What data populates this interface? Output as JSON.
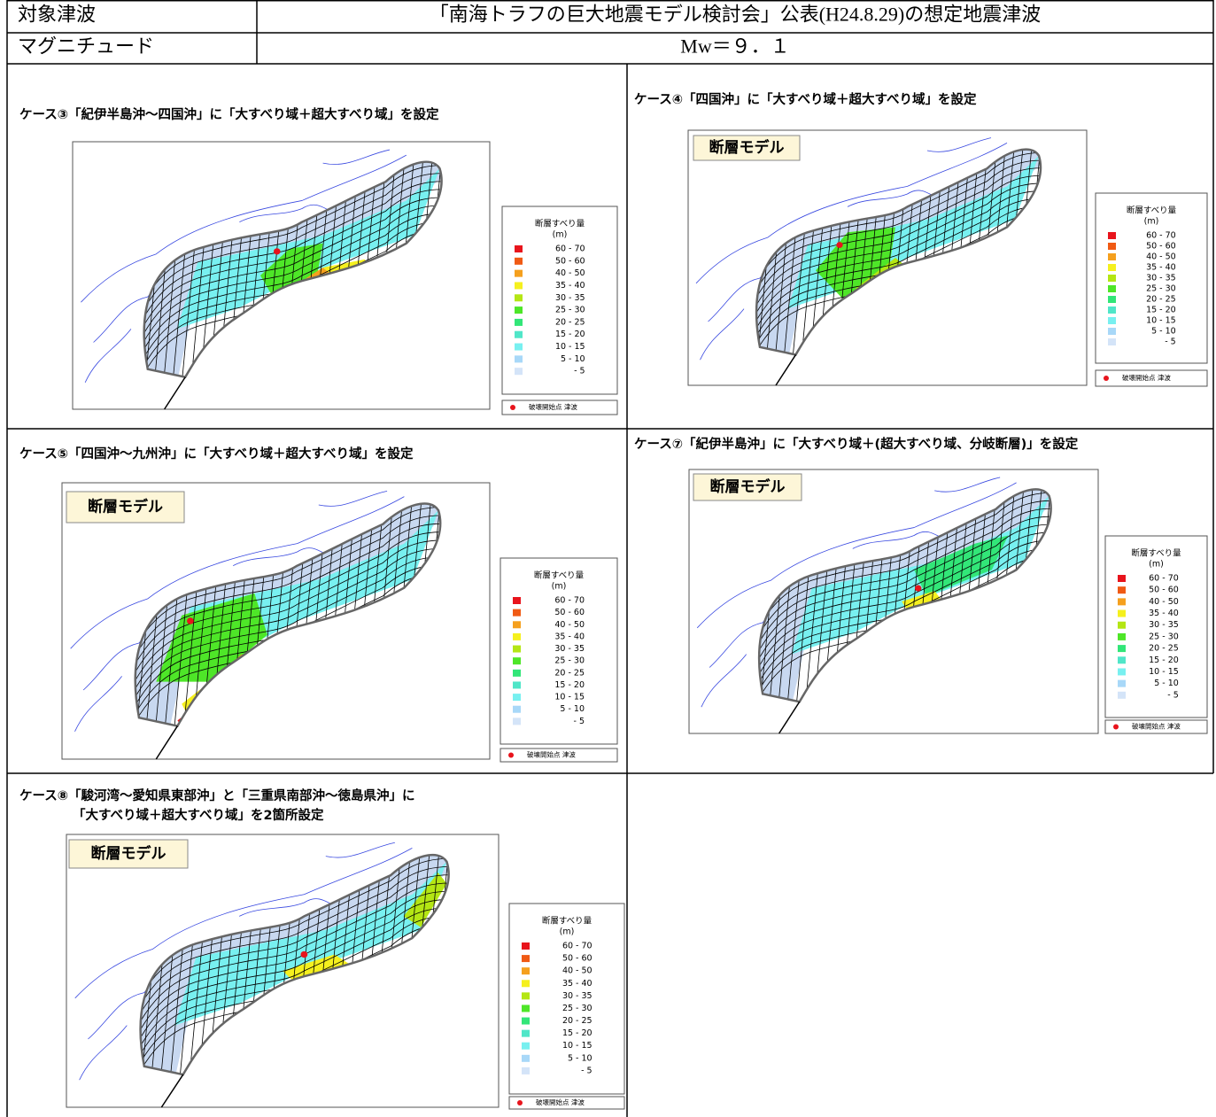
{
  "header": {
    "rows": [
      [
        "対象津波",
        "「南海トラフの巨大地震モデル検討会」公表(H24.8.29)の想定地震津波"
      ],
      [
        "マグニチュード",
        "Mw＝９．１"
      ]
    ]
  },
  "legend": {
    "title": "断層すべり量",
    "unit": "(m)",
    "items": [
      "60 - 70",
      "50 - 60",
      "40 - 50",
      "35 - 40",
      "30 - 35",
      "25 - 30",
      "20 - 25",
      "15 - 20",
      "10 - 15",
      "5 - 10",
      "- 5"
    ],
    "colors": [
      "#e8141c",
      "#f05a14",
      "#f5a01e",
      "#f5f01e",
      "#b4e614",
      "#4ee628",
      "#32e678",
      "#50e6c8",
      "#78f0f0",
      "#a8d8f8",
      "#d4e4f8"
    ],
    "footnote": "破壊開始点 津波"
  },
  "panels": [
    {
      "caption": [
        "ケース③「紀伊半島沖～四国沖」に「大すべり域＋超大すべり域」を設定"
      ]
    },
    {
      "caption": [
        "ケース④「四国沖」に「大すべり域＋超大すべり域」を設定"
      ],
      "model_label": "断層モデル"
    },
    {
      "caption": [
        "ケース⑤「四国沖～九州沖」に「大すべり域＋超大すべり域」を設定"
      ],
      "model_label": "断層モデル"
    },
    {
      "caption": [
        "ケース⑦「紀伊半島沖」に「大すべり域＋(超大すべり域、分岐断層)」を設定"
      ],
      "model_label": "断層モデル"
    },
    {
      "caption": [
        "ケース⑧「駿河湾～愛知県東部沖」と「三重県南部沖～徳島県沖」に",
        "「大すべり域＋超大すべり域」を2箇所設定"
      ],
      "model_label": "断層モデル"
    }
  ]
}
